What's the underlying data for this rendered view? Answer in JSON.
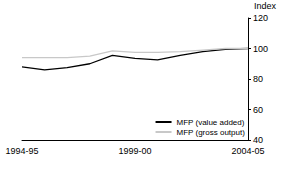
{
  "chart_data": {
    "type": "line",
    "categories": [
      "1994-95",
      null,
      null,
      null,
      null,
      "1999-00",
      null,
      null,
      null,
      null,
      "2004-05"
    ],
    "series": [
      {
        "name": "MFP (value added)",
        "color": "#000000",
        "values": [
          88,
          86,
          87.5,
          90,
          95.5,
          93.5,
          92.5,
          95.5,
          98,
          99.5,
          100
        ]
      },
      {
        "name": "MFP (gross output)",
        "color": "#c8c8c8",
        "values": [
          94,
          94,
          94,
          95,
          98.5,
          97.5,
          97.5,
          98,
          99,
          100,
          100
        ]
      }
    ],
    "ylabel": "Index",
    "ylim": [
      40,
      120
    ],
    "yticks": [
      40,
      60,
      80,
      100,
      120
    ],
    "grid": false,
    "legend": "lower right"
  }
}
